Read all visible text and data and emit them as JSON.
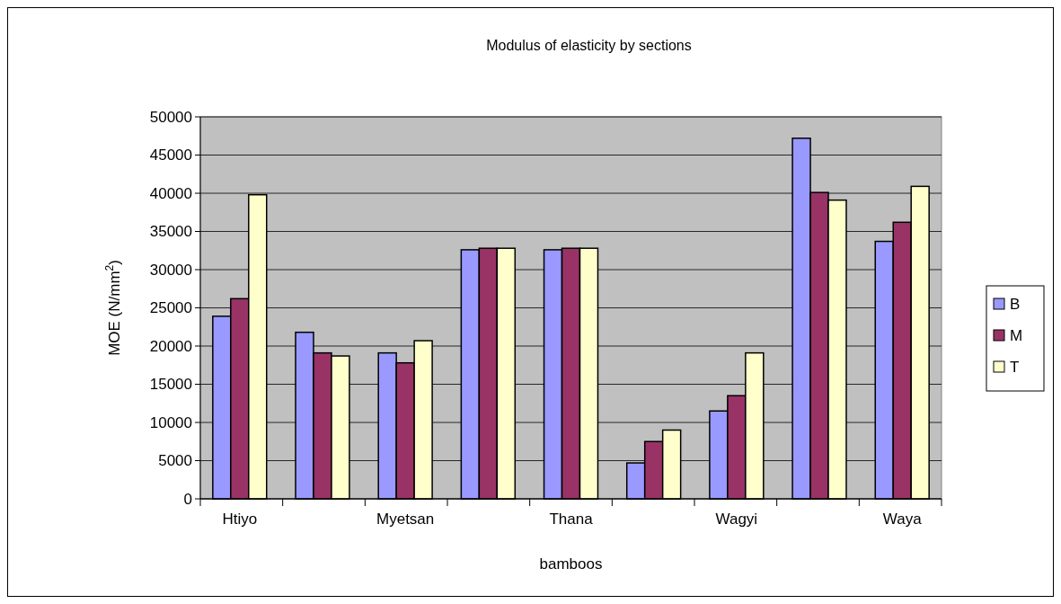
{
  "chart_data": {
    "type": "bar",
    "title": "Modulus of elasticity by sections",
    "xlabel": "bamboos",
    "ylabel": "MOE (N/mm$^{2}$)",
    "categories": [
      "Htiyo",
      null,
      "Myetsan",
      null,
      "Thana",
      null,
      "Wagyi",
      null,
      "Waya"
    ],
    "series": [
      {
        "name": "B",
        "color": "#9999ff",
        "values": [
          23900,
          21800,
          19100,
          32600,
          32600,
          4700,
          11500,
          47200,
          33700
        ]
      },
      {
        "name": "M",
        "color": "#993366",
        "values": [
          26200,
          19100,
          17800,
          32800,
          32800,
          7500,
          13500,
          40100,
          36200
        ]
      },
      {
        "name": "T",
        "color": "#ffffcc",
        "values": [
          39800,
          18700,
          20700,
          32800,
          32800,
          9000,
          19100,
          39100,
          40900
        ]
      }
    ],
    "ylim": [
      0,
      50000
    ],
    "yticks": [
      0,
      5000,
      10000,
      15000,
      20000,
      25000,
      30000,
      35000,
      40000,
      45000,
      50000
    ],
    "grid": "y",
    "legend": "right"
  }
}
